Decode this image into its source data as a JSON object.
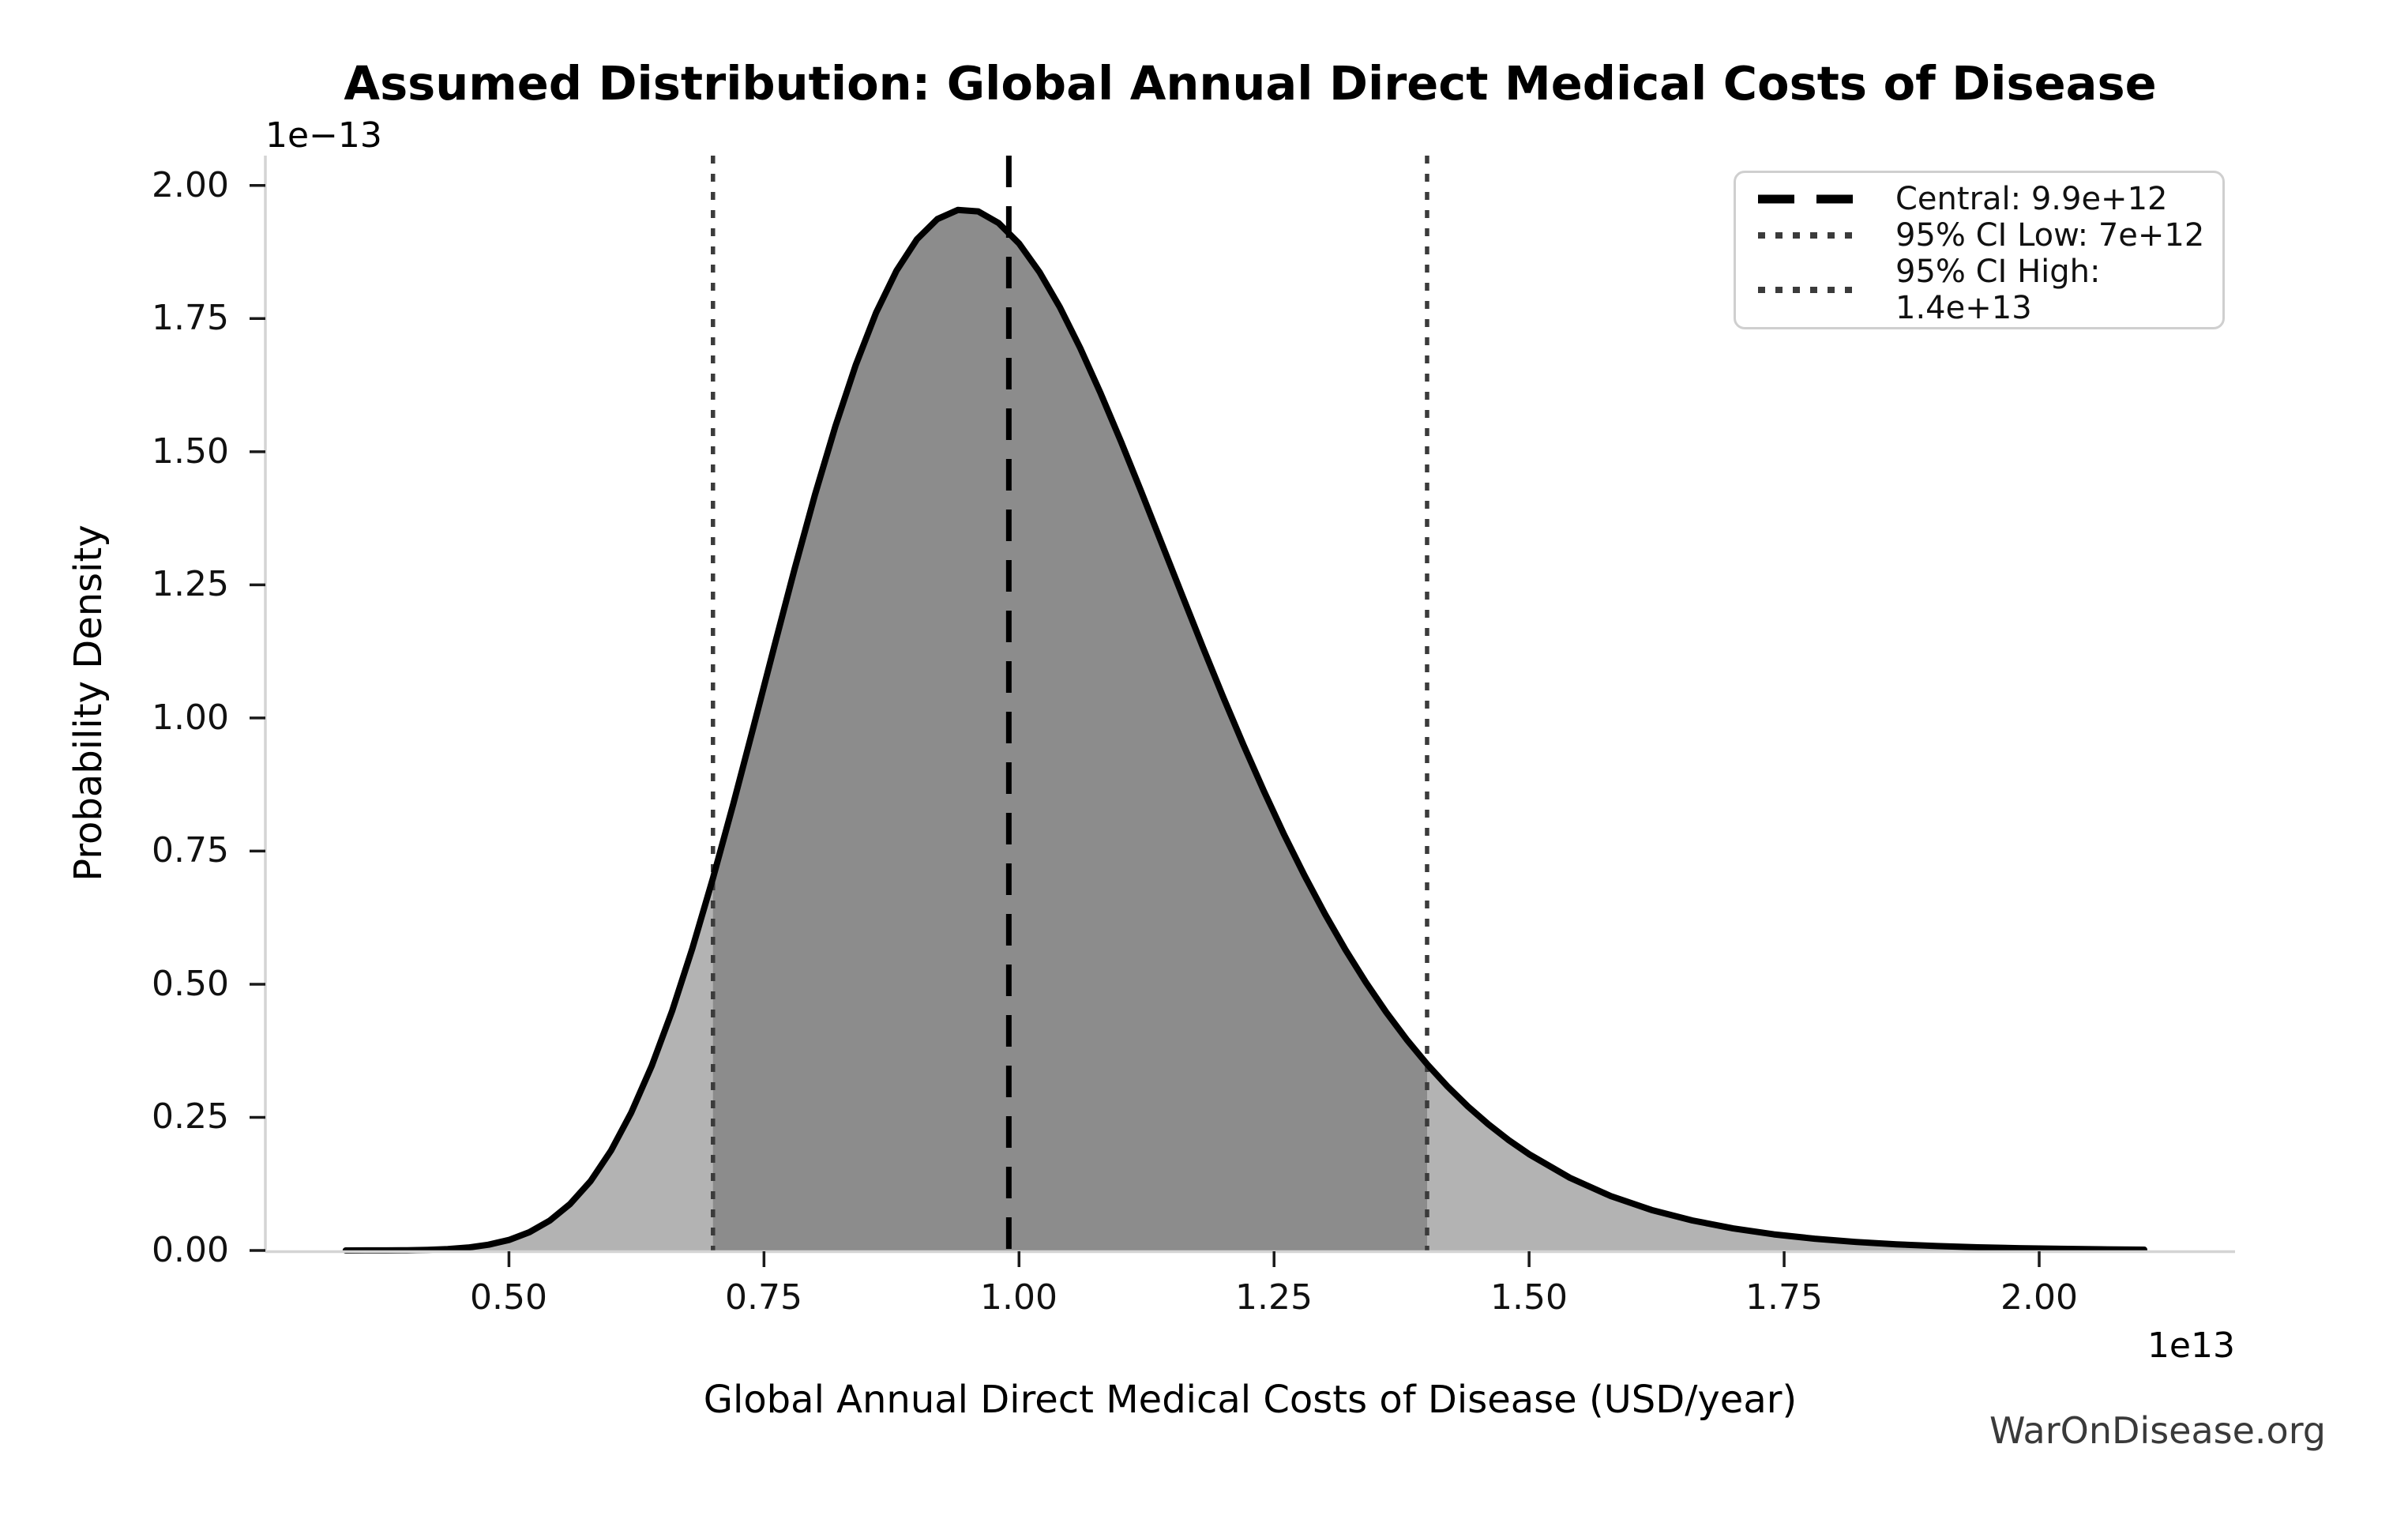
{
  "title": "Assumed Distribution: Global Annual Direct Medical Costs of Disease",
  "watermark": "WarOnDisease.org",
  "axes": {
    "xlabel": "Global Annual Direct Medical Costs of Disease (USD/year)",
    "ylabel": "Probability Density",
    "x_offset_text": "1e13",
    "y_offset_text": "1e−13",
    "xticks": [
      0.5,
      0.75,
      1.0,
      1.25,
      1.5,
      1.75,
      2.0
    ],
    "xtick_labels": [
      "0.50",
      "0.75",
      "1.00",
      "1.25",
      "1.50",
      "1.75",
      "2.00"
    ],
    "yticks": [
      0.0,
      0.25,
      0.5,
      0.75,
      1.0,
      1.25,
      1.5,
      1.75,
      2.0
    ],
    "ytick_labels": [
      "0.00",
      "0.25",
      "0.50",
      "0.75",
      "1.00",
      "1.25",
      "1.50",
      "1.75",
      "2.00"
    ]
  },
  "legend": {
    "items": [
      {
        "label": "Central: 9.9e+12",
        "style": "dashed",
        "color": "#000000"
      },
      {
        "label": "95% CI Low: 7e+12",
        "style": "dotted",
        "color": "#3b3b3b"
      },
      {
        "label": "95% CI High: 1.4e+13",
        "style": "dotted",
        "color": "#3b3b3b"
      }
    ]
  },
  "chart_data": {
    "type": "area",
    "title": "Assumed Distribution: Global Annual Direct Medical Costs of Disease",
    "xlabel": "Global Annual Direct Medical Costs of Disease (USD/year)",
    "ylabel": "Probability Density",
    "x_scale_factor": "1e13",
    "y_scale_factor": "1e-13",
    "xlim": [
      0.262,
      2.192
    ],
    "ylim": [
      0.0,
      2.056
    ],
    "grid": false,
    "legend_position": "upper right",
    "x": [
      0.34,
      0.36,
      0.38,
      0.4,
      0.42,
      0.44,
      0.46,
      0.48,
      0.5,
      0.52,
      0.54,
      0.56,
      0.58,
      0.6,
      0.62,
      0.64,
      0.66,
      0.68,
      0.7,
      0.72,
      0.74,
      0.76,
      0.78,
      0.8,
      0.82,
      0.84,
      0.86,
      0.88,
      0.9,
      0.92,
      0.94,
      0.96,
      0.98,
      1.0,
      1.02,
      1.04,
      1.06,
      1.08,
      1.1,
      1.12,
      1.14,
      1.16,
      1.18,
      1.2,
      1.22,
      1.24,
      1.26,
      1.28,
      1.3,
      1.32,
      1.34,
      1.36,
      1.38,
      1.4,
      1.42,
      1.44,
      1.46,
      1.48,
      1.5,
      1.54,
      1.58,
      1.62,
      1.66,
      1.7,
      1.74,
      1.78,
      1.82,
      1.86,
      1.9,
      1.94,
      1.98,
      2.02,
      2.06,
      2.103
    ],
    "density": [
      0.0,
      0.0001,
      0.0002,
      0.0005,
      0.0012,
      0.0026,
      0.0055,
      0.0108,
      0.0198,
      0.0342,
      0.056,
      0.0873,
      0.1303,
      0.1874,
      0.2593,
      0.347,
      0.45,
      0.5685,
      0.6994,
      0.8392,
      0.9852,
      1.1338,
      1.2797,
      1.4191,
      1.548,
      1.6631,
      1.7614,
      1.8403,
      1.899,
      1.9369,
      1.954,
      1.9512,
      1.9295,
      1.891,
      1.8375,
      1.7713,
      1.6946,
      1.6097,
      1.5187,
      1.4241,
      1.3272,
      1.2301,
      1.1337,
      1.04,
      0.9493,
      0.8627,
      0.7804,
      0.7034,
      0.6315,
      0.5647,
      0.5034,
      0.4472,
      0.3962,
      0.3498,
      0.3081,
      0.2706,
      0.237,
      0.2072,
      0.1808,
      0.1365,
      0.1022,
      0.0761,
      0.0563,
      0.0414,
      0.0303,
      0.0221,
      0.016,
      0.0116,
      0.0083,
      0.006,
      0.0043,
      0.0031,
      0.0022,
      0.0015
    ],
    "vlines": {
      "central": {
        "x": 0.99,
        "value_label": "9.9e+12",
        "style": "dashed",
        "color": "#000000"
      },
      "ci_low": {
        "x": 0.7,
        "value_label": "7e+12",
        "style": "dotted",
        "color": "#3b3b3b"
      },
      "ci_high": {
        "x": 1.4,
        "value_label": "1.4e+13",
        "style": "dotted",
        "color": "#3b3b3b"
      }
    },
    "fill": {
      "outer_color": "#b3b3b3",
      "inner_color": "#8c8c8c",
      "inner_range": [
        0.7,
        1.4
      ]
    },
    "line_color": "#000000",
    "spine_color": "#d4d4d4",
    "tick_color": "#1a1a1a"
  }
}
